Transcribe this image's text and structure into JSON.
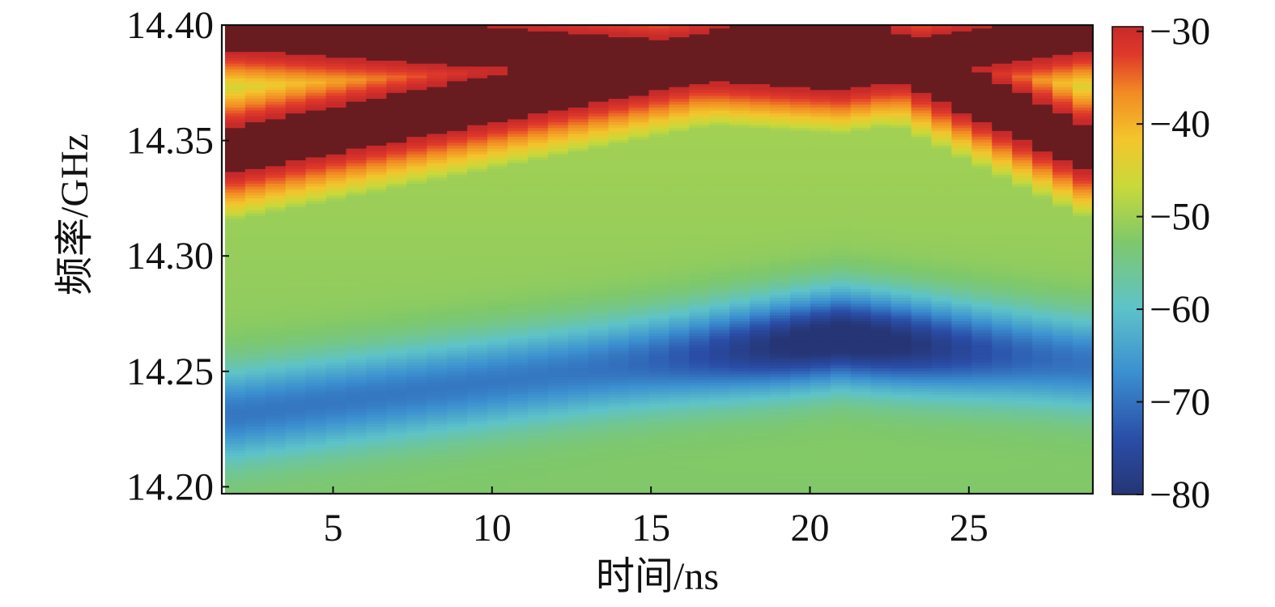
{
  "chart_data": {
    "type": "heatmap",
    "title": "",
    "xlabel": "时间/ns",
    "ylabel": "频率/GHz",
    "xlim": [
      1.5,
      28.9
    ],
    "ylim": [
      14.197,
      14.4
    ],
    "x_ticks": [
      5,
      10,
      15,
      20,
      25
    ],
    "x_tick_labels": [
      "5",
      "10",
      "15",
      "20",
      "25"
    ],
    "y_ticks": [
      14.2,
      14.25,
      14.3,
      14.35,
      14.4
    ],
    "y_tick_labels": [
      "14.20",
      "14.25",
      "14.30",
      "14.35",
      "14.40"
    ],
    "colorbar": {
      "range": [
        -80,
        -28
      ],
      "ticks": [
        -30,
        -40,
        -50,
        -60,
        -70,
        -80
      ],
      "tick_labels": [
        "−30",
        "−40",
        "−50",
        "−60",
        "−70",
        "−80"
      ],
      "colormap": "jet"
    },
    "grid": false,
    "time_columns": {
      "start": 1.6,
      "end": 28.9,
      "count": 43
    },
    "features": [
      {
        "name": "upper_resonance_band",
        "time_range": [
          1.6,
          28.9
        ],
        "freq_start": 14.345,
        "freq_peak": 14.398,
        "peak_time": 21.0,
        "level_db": -28
      },
      {
        "name": "descending_band",
        "time_range": [
          1.6,
          28.9
        ],
        "freq_start": 14.398,
        "freq_peak": 14.38,
        "peak_time": 21.0,
        "level_db": -28
      },
      {
        "name": "lower_notch",
        "time_range": [
          2.0,
          28.0
        ],
        "freq_start": 14.232,
        "freq_peak": 14.265,
        "peak_time": 21.0,
        "freq_end": 14.255,
        "level_db": -75
      }
    ]
  }
}
